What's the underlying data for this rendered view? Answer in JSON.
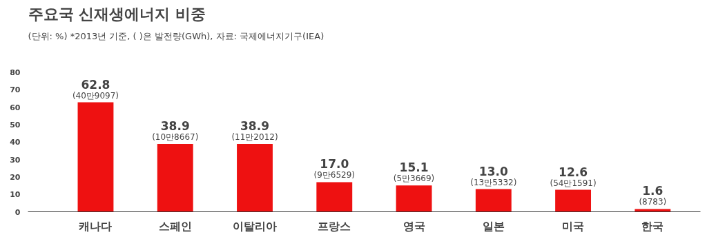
{
  "chart_data": {
    "type": "bar",
    "title": "주요국 신재생에너지 비중",
    "subtitle": "(단위: %) *2013년 기준, ( )은 발전량(GWh), 자료: 국제에너지기구(IEA)",
    "categories": [
      "캐나다",
      "스페인",
      "이탈리아",
      "프랑스",
      "영국",
      "일본",
      "미국",
      "한국"
    ],
    "values": [
      62.8,
      38.9,
      38.9,
      17.0,
      15.1,
      13.0,
      12.6,
      1.6
    ],
    "value_labels": [
      "62.8",
      "38.9",
      "38.9",
      "17.0",
      "15.1",
      "13.0",
      "12.6",
      "1.6"
    ],
    "color": "#ee1111",
    "annotations": [
      {
        "text": "(40만9097)",
        "x": "캐나다",
        "y": 62.8
      },
      {
        "text": "(10만8667)",
        "x": "스페인",
        "y": 38.9
      },
      {
        "text": "(11만2012)",
        "x": "이탈리아",
        "y": 38.9
      },
      {
        "text": "(9만6529)",
        "x": "프랑스",
        "y": 17.0
      },
      {
        "text": "(5만3669)",
        "x": "영국",
        "y": 15.1
      },
      {
        "text": "(13만5332)",
        "x": "일본",
        "y": 13.0
      },
      {
        "text": "(54만1591)",
        "x": "미국",
        "y": 12.6
      },
      {
        "text": "(8783)",
        "x": "한국",
        "y": 1.6
      }
    ],
    "ylim": [
      0,
      80
    ],
    "yticks": [
      0,
      10,
      20,
      30,
      40,
      50,
      60,
      70,
      80
    ],
    "grid": false
  }
}
